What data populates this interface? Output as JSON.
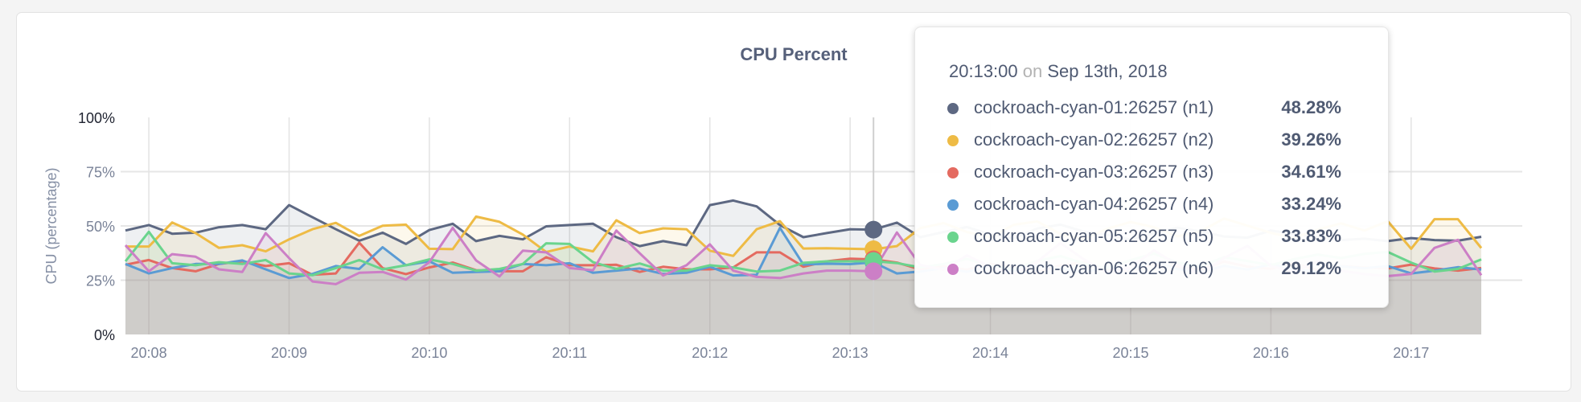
{
  "chart_data": {
    "type": "area",
    "title": "CPU Percent",
    "ylabel": "CPU (percentage)",
    "xlabel": "",
    "ylim": [
      0,
      100
    ],
    "yticks": [
      "0%",
      "25%",
      "50%",
      "75%",
      "100%"
    ],
    "ytick_values": [
      0,
      25,
      50,
      75,
      100
    ],
    "xticks": [
      "20:08",
      "20:09",
      "20:10",
      "20:11",
      "20:12",
      "20:13",
      "20:14",
      "20:15",
      "20:16",
      "20:17"
    ],
    "grid": true,
    "x": [
      "20:07:40",
      "20:07:50",
      "20:08:00",
      "20:08:10",
      "20:08:20",
      "20:08:30",
      "20:08:40",
      "20:08:50",
      "20:09:00",
      "20:09:10",
      "20:09:20",
      "20:09:30",
      "20:09:40",
      "20:09:50",
      "20:10:00",
      "20:10:10",
      "20:10:20",
      "20:10:30",
      "20:10:40",
      "20:10:50",
      "20:11:00",
      "20:11:10",
      "20:11:20",
      "20:11:30",
      "20:11:40",
      "20:11:50",
      "20:12:00",
      "20:12:10",
      "20:12:20",
      "20:12:30",
      "20:12:40",
      "20:12:50",
      "20:13:00",
      "20:13:10",
      "20:13:20",
      "20:13:30",
      "20:13:40",
      "20:13:50",
      "20:14:00",
      "20:14:10",
      "20:14:20",
      "20:14:30",
      "20:14:40",
      "20:14:50",
      "20:15:00",
      "20:15:10",
      "20:15:20",
      "20:15:30",
      "20:15:40",
      "20:15:50",
      "20:16:00",
      "20:16:10",
      "20:16:20",
      "20:16:30",
      "20:16:40",
      "20:16:50",
      "20:17:00",
      "20:17:10",
      "20:17:20"
    ],
    "series": [
      {
        "name": "cockroach-cyan-01:26257 (n1)",
        "color": "#5d6882",
        "values": [
          47.9,
          50.4,
          46.4,
          46.9,
          49.4,
          50.4,
          48.5,
          59.6,
          54,
          48.5,
          43.2,
          46.9,
          41.7,
          48.1,
          51,
          43,
          45.4,
          43.8,
          49.8,
          50.4,
          51,
          44.8,
          40.7,
          43,
          41.1,
          59.6,
          61.7,
          59,
          50.4,
          44.8,
          46.7,
          48.5,
          48.28,
          51.5,
          44.8,
          47.2,
          49.5,
          46.1,
          44.3,
          48.8,
          50.6,
          47.4,
          45.9,
          43.7,
          46.8,
          49.2,
          47.5,
          45.1,
          44.6,
          47.9,
          46.3,
          44.8,
          43.5,
          44.1,
          43,
          44.4,
          43.5,
          43.2,
          45
        ]
      },
      {
        "name": "cockroach-cyan-02:26257 (n2)",
        "color": "#eebb45",
        "values": [
          40.5,
          40.5,
          51.6,
          46.7,
          39.9,
          41.1,
          38.3,
          43.8,
          48.5,
          51.4,
          45.4,
          50.1,
          50.6,
          39.5,
          39.3,
          54.3,
          51.9,
          46,
          38,
          40.5,
          38.3,
          52.6,
          46.7,
          48.9,
          48.5,
          38.6,
          36.2,
          48.5,
          52.2,
          39.6,
          39.7,
          39.5,
          39.26,
          40.7,
          49,
          51.3,
          47.2,
          44.8,
          50.5,
          52.1,
          46.3,
          43.9,
          48.7,
          51.8,
          49.4,
          45.2,
          47.6,
          53.4,
          50.1,
          46.8,
          44.5,
          48.3,
          51.2,
          47.9,
          52.2,
          39.5,
          53.1,
          53.1,
          39.8
        ]
      },
      {
        "name": "cockroach-cyan-03:26257 (n3)",
        "color": "#e46a60",
        "values": [
          32.1,
          34.3,
          30.6,
          29.1,
          32.5,
          33.7,
          31.5,
          32.8,
          27.5,
          28.1,
          42.3,
          30.6,
          27.8,
          30.9,
          33.1,
          29.6,
          29.1,
          29.1,
          35.6,
          31.9,
          31.9,
          32.1,
          28.8,
          31.2,
          30,
          30,
          30.9,
          37.8,
          37.8,
          31.2,
          33.7,
          34.9,
          34.61,
          33.1,
          30,
          31.4,
          29.8,
          32.6,
          30.9,
          28.7,
          31.8,
          33.2,
          30.1,
          29.5,
          32.4,
          31.1,
          29.9,
          33.6,
          31.3,
          30.2,
          32.8,
          29.6,
          31.5,
          30.8,
          30.4,
          32.2,
          30.4,
          29.4,
          30.6
        ]
      },
      {
        "name": "cockroach-cyan-04:26257 (n4)",
        "color": "#5a9bd4",
        "values": [
          32.5,
          28.1,
          30.6,
          32.5,
          32.5,
          34.1,
          30,
          26,
          27.9,
          31.5,
          30.2,
          40.2,
          31.9,
          33.7,
          28.4,
          28.8,
          29.1,
          32.5,
          31.9,
          32.8,
          28.4,
          29.4,
          30.4,
          27.9,
          28.4,
          31.2,
          27.2,
          27.5,
          49.1,
          32.2,
          32.6,
          32.4,
          33.24,
          28.1,
          29,
          30.6,
          28.9,
          31.7,
          29.3,
          32.1,
          30.4,
          28.6,
          31.2,
          29.8,
          33.5,
          30.1,
          28.7,
          31.6,
          29.9,
          32.3,
          30.2,
          28.8,
          31.4,
          30.5,
          31.5,
          28.1,
          29.4,
          31,
          29.9
        ]
      },
      {
        "name": "cockroach-cyan-05:26257 (n5)",
        "color": "#6ad48d",
        "values": [
          33.7,
          47.3,
          32.8,
          31.9,
          33.3,
          32.5,
          34.3,
          28.1,
          27.3,
          30.6,
          34.3,
          30,
          31.9,
          34.6,
          32.5,
          29.4,
          30.2,
          32.5,
          42,
          41.7,
          33.3,
          30.2,
          32.7,
          29.4,
          29.4,
          31.9,
          30.9,
          29,
          29.4,
          33,
          33.7,
          33.7,
          33.83,
          32.9,
          30.9,
          32.4,
          34.8,
          31.6,
          30.2,
          33.9,
          36.1,
          32.7,
          30.5,
          34.2,
          37.3,
          33.1,
          31.4,
          35.6,
          33.8,
          31.9,
          34.7,
          36.8,
          35.2,
          37.1,
          38,
          33.1,
          29,
          30.2,
          34.6
        ]
      },
      {
        "name": "cockroach-cyan-06:26257 (n6)",
        "color": "#cc7fc6",
        "values": [
          41.1,
          29.1,
          37,
          35.8,
          30,
          28.8,
          46.7,
          35.2,
          24.4,
          23.2,
          28.4,
          28.8,
          25.3,
          33.3,
          49.1,
          34.1,
          26.7,
          38.6,
          37.8,
          30.6,
          29.6,
          47.9,
          37.4,
          27.2,
          31.9,
          41.5,
          29.4,
          26.5,
          26,
          28.1,
          29.4,
          29.4,
          29.12,
          47,
          32,
          29.8,
          36.4,
          31.2,
          27.9,
          33.5,
          42.1,
          34.6,
          28.4,
          30.9,
          38.7,
          32.2,
          27.6,
          35.3,
          40.8,
          31.5,
          28.9,
          33.7,
          29.4,
          27.8,
          26.9,
          27.9,
          39.9,
          43.6,
          27.3
        ]
      }
    ],
    "hover_index": 32
  },
  "tooltip": {
    "time": "20:13:00",
    "on": "on",
    "date": "Sep 13th, 2018",
    "rows": [
      {
        "label": "cockroach-cyan-01:26257 (n1)",
        "value": "48.28%",
        "color": "#5d6882"
      },
      {
        "label": "cockroach-cyan-02:26257 (n2)",
        "value": "39.26%",
        "color": "#eebb45"
      },
      {
        "label": "cockroach-cyan-03:26257 (n3)",
        "value": "34.61%",
        "color": "#e46a60"
      },
      {
        "label": "cockroach-cyan-04:26257 (n4)",
        "value": "33.24%",
        "color": "#5a9bd4"
      },
      {
        "label": "cockroach-cyan-05:26257 (n5)",
        "value": "33.83%",
        "color": "#6ad48d"
      },
      {
        "label": "cockroach-cyan-06:26257 (n6)",
        "value": "29.12%",
        "color": "#cc7fc6"
      }
    ]
  }
}
